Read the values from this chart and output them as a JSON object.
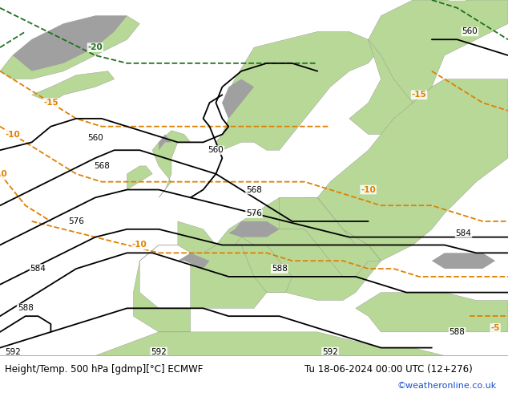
{
  "title_left": "Height/Temp. 500 hPa [gdmp][°C] ECMWF",
  "title_right": "Tu 18-06-2024 00:00 UTC (12+276)",
  "credit": "©weatheronline.co.uk",
  "sea_color": "#d8d8d8",
  "land_color": "#b8d898",
  "mountain_color": "#a0a0a0",
  "height_color": "#000000",
  "temp_orange_color": "#e08000",
  "temp_green_color": "#207020",
  "credit_color": "#1a50cc",
  "figsize": [
    6.34,
    4.9
  ],
  "dpi": 100,
  "map_extent": [
    -30,
    50,
    30,
    75
  ],
  "title_fontsize": 8.5,
  "credit_fontsize": 8.0,
  "label_fontsize": 7.5
}
